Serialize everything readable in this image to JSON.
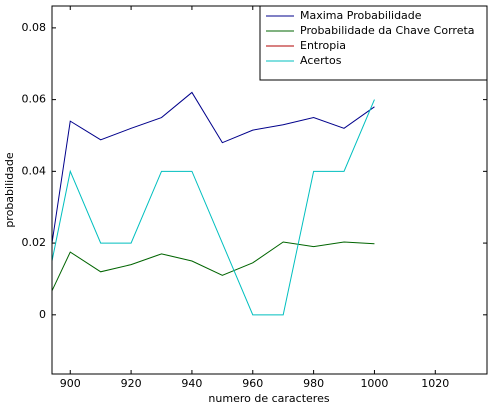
{
  "chart_data": {
    "type": "line",
    "xlabel": "numero de caracteres",
    "ylabel": "probabilidade",
    "x": [
      894,
      900,
      910,
      920,
      930,
      940,
      950,
      960,
      970,
      980,
      990,
      1000
    ],
    "series": [
      {
        "name": "Maxima Probabilidade",
        "color": "#00008b",
        "values": [
          0.02,
          0.054,
          0.0488,
          0.052,
          0.055,
          0.062,
          0.048,
          0.0515,
          0.053,
          0.055,
          0.052,
          0.058
        ]
      },
      {
        "name": "Probabilidade da Chave Correta",
        "color": "#006400",
        "values": [
          0.0067,
          0.0175,
          0.012,
          0.014,
          0.017,
          0.015,
          0.011,
          0.0145,
          0.0203,
          0.019,
          0.0203,
          0.0198
        ]
      },
      {
        "name": "Entropia",
        "color": "#b00000",
        "values": [
          null,
          null,
          null,
          null,
          null,
          null,
          null,
          null,
          null,
          null,
          null,
          null
        ]
      },
      {
        "name": "Acertos",
        "color": "#00bfbf",
        "values": [
          0.015,
          0.04,
          0.02,
          0.02,
          0.04,
          0.04,
          0.02,
          0,
          0,
          0.04,
          0.04,
          0.06
        ]
      }
    ],
    "xlim": [
      894,
      1037
    ],
    "xticks": [
      900,
      920,
      940,
      960,
      980,
      1000,
      1020
    ],
    "ylim": [
      -0.0165,
      0.0861
    ],
    "yticks": [
      0,
      0.02,
      0.04,
      0.06,
      0.08
    ],
    "legend": "upper right"
  }
}
